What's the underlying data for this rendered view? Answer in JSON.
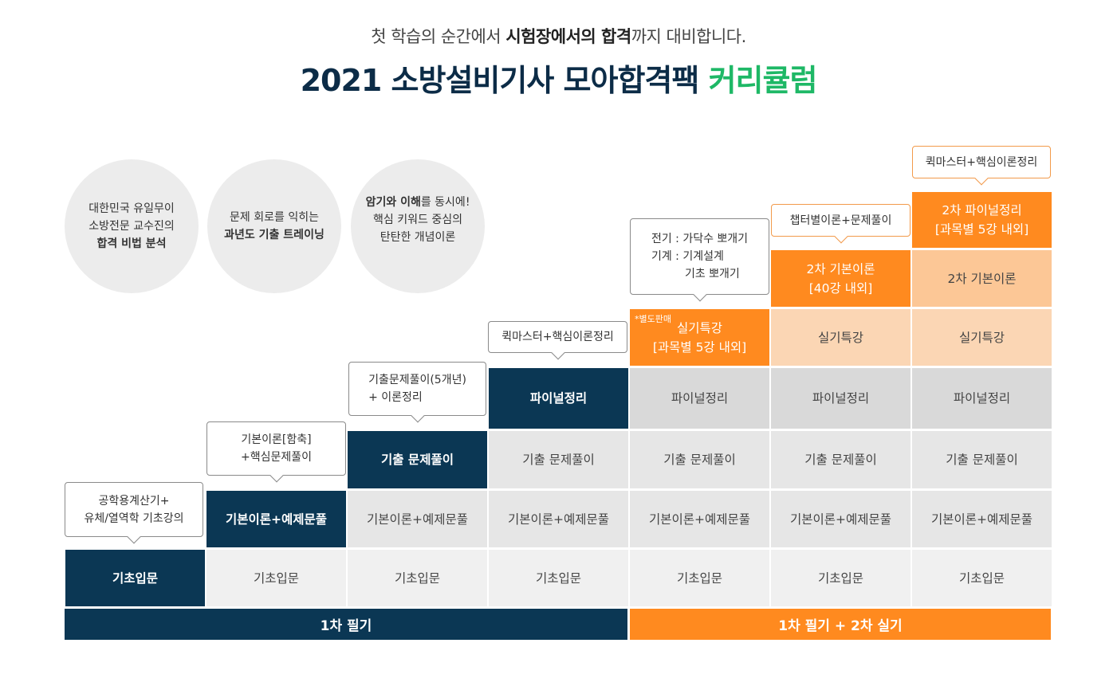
{
  "header": {
    "subtitle_pre": "첫 학습의 순간에서 ",
    "subtitle_bold": "시험장에서의 합격",
    "subtitle_post": "까지 대비합니다.",
    "title_main": "2021 소방설비기사 모아합격팩 ",
    "title_accent": "커리큘럼"
  },
  "circles": [
    {
      "line1": "대한민국 유일무이",
      "line2": "소방전문 교수진의",
      "line3": "합격 비법 분석"
    },
    {
      "line1": "문제 회로를 익히는",
      "line2": "과년도 기출 트레이닝"
    },
    {
      "line1a": "암기와 이해",
      "line1b": "를 동시에!",
      "line2": "핵심 키워드 중심의",
      "line3": "탄탄한 개념이론"
    }
  ],
  "grid": {
    "basic": "기초입문",
    "theory": "기본이론+예제문풀",
    "past": "기출 문제풀이",
    "final": "파이널정리",
    "practical": "실기특강",
    "practical_line2": "[과목별 5강 내외]",
    "separate_sale": "*별도판매",
    "second_basic": "2차 기본이론",
    "second_basic_line2": "[40강 내외]",
    "second_final": "2차 파이널정리",
    "second_final_line2": "[과목별 5강 내외]"
  },
  "bubbles": {
    "b1_line1": "공학용계산기+",
    "b1_line2": "유체/열역학 기초강의",
    "b2_line1": "기본이론[함축]",
    "b2_line2": "+핵심문제풀이",
    "b3_line1": "기출문제풀이(5개년)",
    "b3_line2": "+ 이론정리",
    "b4": "퀵마스터+핵심이론정리",
    "b5_line1": "전기 : 가닥수 뽀개기",
    "b5_line2": "기계 : 기계설계",
    "b5_line3": "기초 뽀개기",
    "b6": "챕터별이론+문제풀이",
    "b7": "퀵마스터+핵심이론정리"
  },
  "bars": {
    "first": "1차 필기",
    "second": "1차 필기 + 2차 실기"
  },
  "colors": {
    "navy": "#0b3754",
    "orange": "#ff8a1f",
    "green": "#1eb866"
  }
}
